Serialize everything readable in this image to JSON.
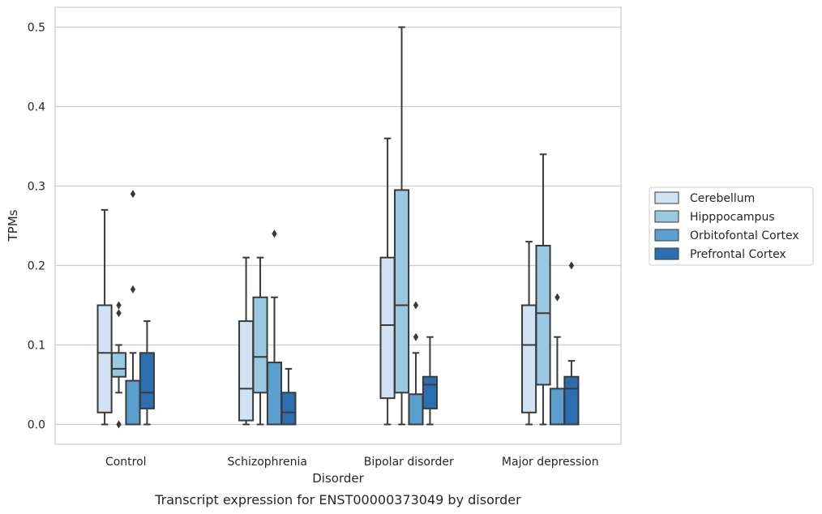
{
  "chart_data": {
    "type": "box",
    "caption": "Transcript expression for ENST00000373049 by disorder",
    "xlabel": "Disorder",
    "ylabel": "TPMs",
    "ylim": [
      -0.025,
      0.525
    ],
    "yticks": [
      "0.0",
      "0.1",
      "0.2",
      "0.3",
      "0.4",
      "0.5"
    ],
    "ytick_values": [
      0.0,
      0.1,
      0.2,
      0.3,
      0.4,
      0.5
    ],
    "grid": true,
    "legend_position": "right",
    "categories": [
      "Control",
      "Schizophrenia",
      "Bipolar disorder",
      "Major depression"
    ],
    "series": [
      {
        "name": "Cerebellum",
        "color": "#d1e2f2",
        "boxes": [
          {
            "whislo": 0.0,
            "q1": 0.015,
            "med": 0.09,
            "q3": 0.15,
            "whishi": 0.27,
            "fliers": []
          },
          {
            "whislo": 0.0,
            "q1": 0.005,
            "med": 0.045,
            "q3": 0.13,
            "whishi": 0.21,
            "fliers": []
          },
          {
            "whislo": 0.0,
            "q1": 0.033,
            "med": 0.125,
            "q3": 0.21,
            "whishi": 0.36,
            "fliers": []
          },
          {
            "whislo": 0.0,
            "q1": 0.015,
            "med": 0.1,
            "q3": 0.15,
            "whishi": 0.23,
            "fliers": []
          }
        ]
      },
      {
        "name": "Hipppocampus",
        "color": "#9ac8e0",
        "boxes": [
          {
            "whislo": 0.04,
            "q1": 0.06,
            "med": 0.07,
            "q3": 0.09,
            "whishi": 0.1,
            "fliers": [
              0.15,
              0.14,
              0.0
            ]
          },
          {
            "whislo": 0.0,
            "q1": 0.04,
            "med": 0.085,
            "q3": 0.16,
            "whishi": 0.21,
            "fliers": []
          },
          {
            "whislo": 0.0,
            "q1": 0.04,
            "med": 0.15,
            "q3": 0.295,
            "whishi": 0.5,
            "fliers": []
          },
          {
            "whislo": 0.0,
            "q1": 0.05,
            "med": 0.14,
            "q3": 0.225,
            "whishi": 0.34,
            "fliers": []
          }
        ]
      },
      {
        "name": "Orbitofontal Cortex",
        "color": "#5a9fcd",
        "boxes": [
          {
            "whislo": 0.0,
            "q1": 0.0,
            "med": 0.0,
            "q3": 0.055,
            "whishi": 0.09,
            "fliers": [
              0.29,
              0.17
            ]
          },
          {
            "whislo": 0.0,
            "q1": 0.0,
            "med": 0.0,
            "q3": 0.078,
            "whishi": 0.16,
            "fliers": [
              0.24
            ]
          },
          {
            "whislo": 0.0,
            "q1": 0.0,
            "med": 0.0,
            "q3": 0.038,
            "whishi": 0.09,
            "fliers": [
              0.15,
              0.11
            ]
          },
          {
            "whislo": 0.0,
            "q1": 0.0,
            "med": 0.0,
            "q3": 0.045,
            "whishi": 0.11,
            "fliers": [
              0.16
            ]
          }
        ]
      },
      {
        "name": "Prefrontal Cortex",
        "color": "#2b6fb2",
        "boxes": [
          {
            "whislo": 0.0,
            "q1": 0.02,
            "med": 0.04,
            "q3": 0.09,
            "whishi": 0.13,
            "fliers": []
          },
          {
            "whislo": 0.0,
            "q1": 0.0,
            "med": 0.015,
            "q3": 0.04,
            "whishi": 0.07,
            "fliers": []
          },
          {
            "whislo": 0.0,
            "q1": 0.02,
            "med": 0.05,
            "q3": 0.06,
            "whishi": 0.11,
            "fliers": []
          },
          {
            "whislo": 0.0,
            "q1": 0.0,
            "med": 0.045,
            "q3": 0.06,
            "whishi": 0.08,
            "fliers": [
              0.2
            ]
          }
        ]
      }
    ]
  }
}
